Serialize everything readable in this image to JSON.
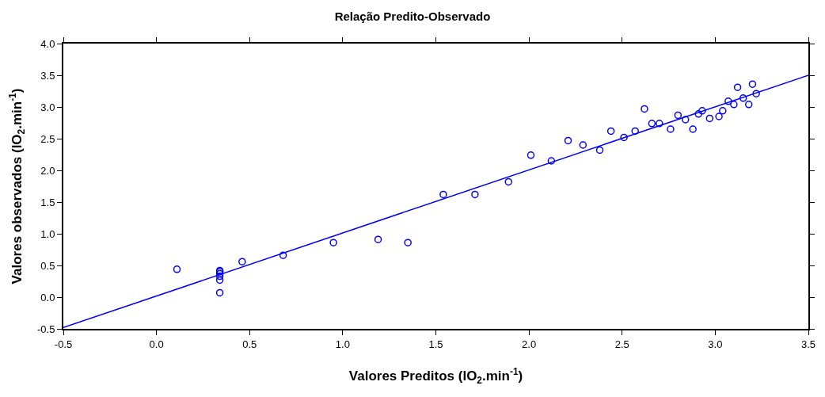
{
  "chart_data": {
    "type": "scatter",
    "title": "Relação Predito-Observado",
    "xlabel": "Valores Preditos (lO$_{2}$.min$^{-1}$)",
    "ylabel": "Valores observados (lO$_{2}$.min$^{-1}$)",
    "x": [
      0.11,
      0.34,
      0.34,
      0.34,
      0.34,
      0.34,
      0.34,
      0.46,
      0.68,
      0.95,
      1.19,
      1.35,
      1.54,
      1.71,
      1.89,
      2.01,
      2.12,
      2.21,
      2.29,
      2.38,
      2.44,
      2.51,
      2.57,
      2.62,
      2.66,
      2.7,
      2.76,
      2.8,
      2.84,
      2.88,
      2.91,
      2.93,
      2.97,
      3.02,
      3.04,
      3.07,
      3.1,
      3.12,
      3.15,
      3.18,
      3.2,
      3.22
    ],
    "series": [
      {
        "color": "#0000ff",
        "marker": "circle",
        "values": [
          0.44,
          0.42,
          0.4,
          0.37,
          0.33,
          0.27,
          0.07,
          0.56,
          0.66,
          0.86,
          0.91,
          0.86,
          1.62,
          1.62,
          1.82,
          2.24,
          2.15,
          2.47,
          2.4,
          2.32,
          2.62,
          2.52,
          2.62,
          2.97,
          2.74,
          2.74,
          2.65,
          2.87,
          2.8,
          2.65,
          2.89,
          2.94,
          2.82,
          2.85,
          2.94,
          3.09,
          3.04,
          3.31,
          3.14,
          3.04,
          3.36,
          3.21
        ]
      },
      {
        "type": "line",
        "color": "#0000ff",
        "marker": "none",
        "x": [
          -0.5,
          3.5
        ],
        "values": [
          -0.48,
          3.5
        ]
      }
    ],
    "xlim": [
      -0.5,
      3.5
    ],
    "ylim": [
      -0.5,
      4.0
    ],
    "xticks": [
      {
        "value": -0.5,
        "label": "-0.5"
      },
      {
        "value": 0,
        "label": "0.0"
      },
      {
        "value": 0.5,
        "label": "0.5"
      },
      {
        "value": 1,
        "label": "1.0"
      },
      {
        "value": 1.5,
        "label": "1.5"
      },
      {
        "value": 2,
        "label": "2.0"
      },
      {
        "value": 2.5,
        "label": "2.5"
      },
      {
        "value": 3,
        "label": "3.0"
      },
      {
        "value": 3.5,
        "label": "3.5"
      }
    ],
    "yticks": [
      {
        "value": -0.5,
        "label": "-0.5"
      },
      {
        "value": 0,
        "label": "0.0"
      },
      {
        "value": 0.5,
        "label": "0.5"
      },
      {
        "value": 1,
        "label": "1.0"
      },
      {
        "value": 1.5,
        "label": "1.5"
      },
      {
        "value": 2,
        "label": "2.0"
      },
      {
        "value": 2.5,
        "label": "2.5"
      },
      {
        "value": 3,
        "label": "3.0"
      },
      {
        "value": 3.5,
        "label": "3.5"
      },
      {
        "value": 4,
        "label": "4.0"
      }
    ]
  }
}
